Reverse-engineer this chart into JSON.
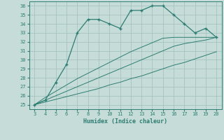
{
  "xlabel": "Humidex (Indice chaleur)",
  "x": [
    3,
    4,
    5,
    6,
    7,
    8,
    9,
    10,
    11,
    12,
    13,
    14,
    15,
    16,
    17,
    18,
    19,
    20
  ],
  "y_main": [
    25,
    25.5,
    27.5,
    29.5,
    33,
    34.5,
    34.5,
    34,
    33.5,
    35.5,
    35.5,
    36,
    36,
    35,
    34,
    33,
    33.5,
    32.5
  ],
  "y_line1": [
    25,
    25.8,
    26.5,
    27.2,
    27.9,
    28.5,
    29.1,
    29.7,
    30.3,
    30.9,
    31.4,
    31.9,
    32.4,
    32.5,
    32.5,
    32.5,
    32.5,
    32.5
  ],
  "y_line2": [
    25,
    25.5,
    26.0,
    26.5,
    27.0,
    27.5,
    28.0,
    28.5,
    29.0,
    29.5,
    30.0,
    30.5,
    31.0,
    31.5,
    31.8,
    32.0,
    32.2,
    32.5
  ],
  "y_line3": [
    25,
    25.3,
    25.6,
    25.9,
    26.2,
    26.5,
    26.8,
    27.2,
    27.5,
    27.9,
    28.2,
    28.6,
    29.0,
    29.4,
    29.7,
    30.1,
    30.5,
    30.9
  ],
  "color": "#2e7d72",
  "bg_color": "#c5dcd8",
  "grid_color": "#9fbfbb",
  "xlim": [
    2.5,
    20.5
  ],
  "ylim": [
    24.5,
    36.5
  ],
  "yticks": [
    25,
    26,
    27,
    28,
    29,
    30,
    31,
    32,
    33,
    34,
    35,
    36
  ],
  "xticks": [
    3,
    4,
    5,
    6,
    7,
    8,
    9,
    10,
    11,
    12,
    13,
    14,
    15,
    16,
    17,
    18,
    19,
    20
  ]
}
